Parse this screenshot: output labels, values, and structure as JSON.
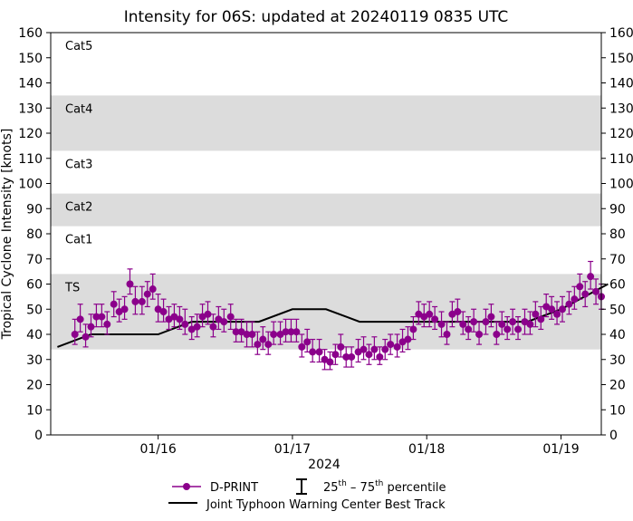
{
  "chart_data": {
    "type": "scatter",
    "title": "Intensity for 06S: updated at 20240119 0835 UTC",
    "xlabel": "2024",
    "ylabel": "Tropical Cyclone Intensity [knots]",
    "ylim": [
      0,
      160
    ],
    "xlim": [
      -0.8,
      3.3
    ],
    "x_unit": "days since 2024-01-16 00 UTC",
    "y_ticks": [
      0,
      10,
      20,
      30,
      40,
      50,
      60,
      70,
      80,
      90,
      100,
      110,
      120,
      130,
      140,
      150,
      160
    ],
    "x_ticks": [
      {
        "value": 0,
        "label": "01/16"
      },
      {
        "value": 1,
        "label": "01/17"
      },
      {
        "value": 2,
        "label": "01/18"
      },
      {
        "value": 3,
        "label": "01/19"
      }
    ],
    "category_bands": [
      {
        "label": "TS",
        "min": 34,
        "max": 64,
        "shaded": true
      },
      {
        "label": "Cat1",
        "min": 64,
        "max": 83,
        "shaded": false
      },
      {
        "label": "Cat2",
        "min": 83,
        "max": 96,
        "shaded": true
      },
      {
        "label": "Cat3",
        "min": 96,
        "max": 113,
        "shaded": false
      },
      {
        "label": "Cat4",
        "min": 113,
        "max": 135,
        "shaded": true
      },
      {
        "label": "Cat5",
        "min": 135,
        "max": 160,
        "shaded": false
      }
    ],
    "legend": {
      "dprint": "D-PRINT",
      "percentile_prefix": "25",
      "percentile_sup1": "th",
      "percentile_mid": " – 75",
      "percentile_sup2": "th",
      "percentile_suffix": " percentile",
      "best_track": "Joint Typhoon Warning Center Best Track",
      "placement": "bottom-center"
    },
    "colors": {
      "dprint": "#8b008b",
      "best_track": "#000000",
      "band": "#dcdcdc"
    },
    "series": [
      {
        "name": "D-PRINT",
        "type": "scatter-errorbar",
        "x": [
          -0.62,
          -0.58,
          -0.54,
          -0.5,
          -0.46,
          -0.42,
          -0.38,
          -0.33,
          -0.29,
          -0.25,
          -0.21,
          -0.17,
          -0.12,
          -0.08,
          -0.04,
          0.0,
          0.04,
          0.08,
          0.12,
          0.16,
          0.2,
          0.25,
          0.29,
          0.33,
          0.37,
          0.41,
          0.45,
          0.49,
          0.54,
          0.58,
          0.62,
          0.66,
          0.7,
          0.74,
          0.78,
          0.82,
          0.86,
          0.91,
          0.95,
          0.99,
          1.03,
          1.07,
          1.11,
          1.15,
          1.2,
          1.24,
          1.28,
          1.32,
          1.36,
          1.4,
          1.44,
          1.49,
          1.53,
          1.57,
          1.61,
          1.65,
          1.69,
          1.73,
          1.78,
          1.82,
          1.86,
          1.9,
          1.94,
          1.98,
          2.02,
          2.06,
          2.11,
          2.15,
          2.19,
          2.23,
          2.27,
          2.31,
          2.35,
          2.39,
          2.44,
          2.48,
          2.52,
          2.56,
          2.6,
          2.64,
          2.68,
          2.73,
          2.77,
          2.81,
          2.85,
          2.89,
          2.93,
          2.97,
          3.01,
          3.06,
          3.1,
          3.14,
          3.18,
          3.22,
          3.26,
          3.3
        ],
        "y": [
          40,
          46,
          39,
          43,
          47,
          47,
          44,
          52,
          49,
          50,
          60,
          53,
          53,
          56,
          58,
          50,
          49,
          46,
          47,
          46,
          44,
          42,
          43,
          47,
          48,
          43,
          46,
          45,
          47,
          41,
          41,
          40,
          40,
          36,
          38,
          36,
          40,
          40,
          41,
          41,
          41,
          35,
          37,
          33,
          33,
          30,
          29,
          32,
          35,
          31,
          31,
          33,
          34,
          32,
          34,
          31,
          34,
          36,
          35,
          37,
          38,
          42,
          48,
          47,
          48,
          46,
          44,
          40,
          48,
          49,
          44,
          42,
          45,
          40,
          45,
          47,
          40,
          44,
          42,
          45,
          42,
          45,
          44,
          48,
          46,
          51,
          50,
          48,
          50,
          52,
          54,
          59,
          56,
          63,
          57,
          55
        ],
        "low": [
          36,
          41,
          35,
          39,
          43,
          43,
          40,
          47,
          45,
          46,
          56,
          48,
          48,
          51,
          54,
          45,
          45,
          42,
          43,
          42,
          40,
          38,
          39,
          43,
          44,
          39,
          42,
          41,
          42,
          37,
          37,
          35,
          35,
          32,
          34,
          32,
          36,
          36,
          37,
          37,
          37,
          31,
          33,
          29,
          29,
          26,
          26,
          28,
          31,
          27,
          27,
          29,
          30,
          28,
          30,
          28,
          30,
          32,
          31,
          33,
          34,
          38,
          44,
          43,
          43,
          42,
          39,
          36,
          43,
          45,
          40,
          38,
          41,
          36,
          40,
          43,
          36,
          40,
          38,
          40,
          38,
          40,
          40,
          43,
          42,
          47,
          46,
          44,
          45,
          48,
          50,
          54,
          51,
          58,
          52,
          50
        ],
        "high": [
          46,
          52,
          44,
          48,
          52,
          52,
          49,
          57,
          54,
          55,
          66,
          59,
          59,
          61,
          64,
          56,
          54,
          51,
          52,
          51,
          50,
          47,
          48,
          52,
          53,
          48,
          51,
          50,
          52,
          46,
          46,
          45,
          45,
          41,
          43,
          41,
          45,
          45,
          46,
          46,
          46,
          40,
          42,
          38,
          38,
          34,
          33,
          36,
          40,
          35,
          35,
          38,
          39,
          36,
          39,
          35,
          38,
          40,
          40,
          42,
          43,
          47,
          53,
          52,
          53,
          51,
          49,
          45,
          53,
          54,
          49,
          47,
          50,
          45,
          50,
          52,
          45,
          49,
          47,
          50,
          47,
          50,
          49,
          53,
          51,
          56,
          55,
          53,
          55,
          57,
          59,
          64,
          61,
          69,
          62,
          60
        ]
      },
      {
        "name": "Joint Typhoon Warning Center Best Track",
        "type": "line",
        "x": [
          -0.75,
          -0.5,
          0.0,
          0.25,
          0.75,
          1.0,
          1.25,
          1.5,
          2.0,
          2.5,
          2.75,
          3.0,
          3.35
        ],
        "y": [
          35,
          40,
          40,
          45,
          45,
          50,
          50,
          45,
          45,
          45,
          45,
          50,
          60
        ]
      }
    ]
  }
}
